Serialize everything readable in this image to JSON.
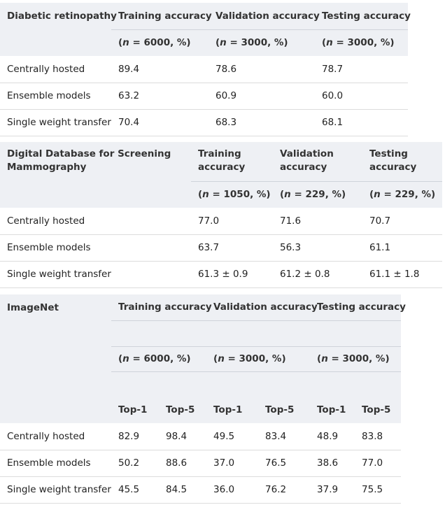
{
  "table1": {
    "title": "Diabetic retinopathy",
    "columns": [
      "Training accuracy",
      "Validation accuracy",
      "Testing accuracy"
    ],
    "sizes": [
      "(n = 6000, %)",
      "(n = 3000, %)",
      "(n = 3000, %)"
    ],
    "rows": [
      {
        "label": "Centrally hosted",
        "values": [
          "89.4",
          "78.6",
          "78.7"
        ]
      },
      {
        "label": "Ensemble models",
        "values": [
          "63.2",
          "60.9",
          "60.0"
        ]
      },
      {
        "label": "Single weight transfer",
        "values": [
          "70.4",
          "68.3",
          "68.1"
        ]
      }
    ]
  },
  "table2": {
    "title": "Digital Database for Screening Mammography",
    "columns": [
      "Training accuracy",
      "Validation accuracy",
      "Testing accuracy"
    ],
    "sizes": [
      "(n = 1050, %)",
      "(n = 229, %)",
      "(n = 229, %)"
    ],
    "rows": [
      {
        "label": "Centrally hosted",
        "values": [
          "77.0",
          "71.6",
          "70.7"
        ]
      },
      {
        "label": "Ensemble models",
        "values": [
          "63.7",
          "56.3",
          "61.1"
        ]
      },
      {
        "label": "Single weight transfer",
        "values": [
          "61.3 ± 0.9",
          "61.2 ± 0.8",
          "61.1 ± 1.8"
        ]
      }
    ]
  },
  "table3": {
    "title": "ImageNet",
    "columns": [
      "Training accuracy",
      "Validation accuracy",
      "Testing accuracy"
    ],
    "sizes": [
      "(n = 6000, %)",
      "(n = 3000, %)",
      "(n = 3000, %)"
    ],
    "subcolumns": [
      "Top-1",
      "Top-5",
      "Top-1",
      "Top-5",
      "Top-1",
      "Top-5"
    ],
    "rows": [
      {
        "label": "Centrally hosted",
        "values": [
          "82.9",
          "98.4",
          "49.5",
          "83.4",
          "48.9",
          "83.8"
        ]
      },
      {
        "label": "Ensemble models",
        "values": [
          "50.2",
          "88.6",
          "37.0",
          "76.5",
          "38.6",
          "77.0"
        ]
      },
      {
        "label": "Single weight transfer",
        "values": [
          "45.5",
          "84.5",
          "36.0",
          "76.2",
          "37.9",
          "75.5"
        ]
      }
    ]
  }
}
